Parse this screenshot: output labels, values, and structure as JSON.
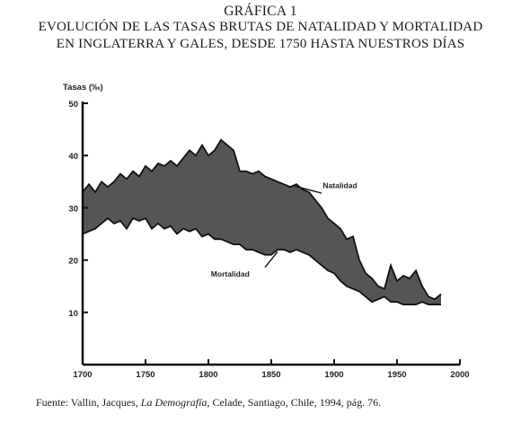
{
  "header": {
    "title": "GRÁFICA 1",
    "subtitle_line1": "EVOLUCIÓN DE LAS TASAS BRUTAS DE NATALIDAD Y MORTALIDAD",
    "subtitle_line2": "EN INGLATERRA Y GALES, DESDE 1750 HASTA NUESTROS DÍAS"
  },
  "source": {
    "prefix": "Fuente:  Vallin, Jacques, ",
    "italic": "La Demografía",
    "suffix": ", Celade, Santiago, Chile, 1994, pág. 76."
  },
  "chart_data": {
    "type": "area",
    "ylabel": "Tasas (‰)",
    "xlabel": "",
    "xlim": [
      1700,
      2000
    ],
    "ylim": [
      0,
      50
    ],
    "x_ticks": [
      1700,
      1750,
      1800,
      1850,
      1900,
      1950,
      2000
    ],
    "y_ticks": [
      10,
      20,
      30,
      40,
      50
    ],
    "fill_color": "#555555",
    "series": [
      {
        "name": "Natalidad",
        "x": [
          1700,
          1705,
          1710,
          1715,
          1720,
          1725,
          1730,
          1735,
          1740,
          1745,
          1750,
          1755,
          1760,
          1765,
          1770,
          1775,
          1780,
          1785,
          1790,
          1795,
          1800,
          1805,
          1810,
          1815,
          1820,
          1825,
          1830,
          1835,
          1840,
          1845,
          1850,
          1855,
          1860,
          1865,
          1870,
          1875,
          1880,
          1885,
          1890,
          1895,
          1900,
          1905,
          1910,
          1915,
          1920,
          1925,
          1930,
          1935,
          1940,
          1945,
          1950,
          1955,
          1960,
          1965,
          1970,
          1975,
          1980,
          1985
        ],
        "values": [
          33,
          34.5,
          33,
          35,
          34,
          35,
          36.5,
          35.5,
          37,
          36,
          38,
          37,
          38.5,
          38,
          39,
          38,
          39.5,
          41,
          40,
          42,
          40,
          41,
          43,
          42,
          41,
          37,
          37,
          36.5,
          37,
          36,
          35.5,
          35,
          34.5,
          34,
          34.5,
          33.5,
          33,
          31.5,
          30,
          28,
          27,
          26,
          24,
          24.5,
          20,
          17.5,
          16.5,
          15,
          14.5,
          19,
          16,
          17,
          16.5,
          18,
          15,
          13,
          12.5,
          13.5
        ]
      },
      {
        "name": "Mortalidad",
        "x": [
          1700,
          1705,
          1710,
          1715,
          1720,
          1725,
          1730,
          1735,
          1740,
          1745,
          1750,
          1755,
          1760,
          1765,
          1770,
          1775,
          1780,
          1785,
          1790,
          1795,
          1800,
          1805,
          1810,
          1815,
          1820,
          1825,
          1830,
          1835,
          1840,
          1845,
          1850,
          1855,
          1860,
          1865,
          1870,
          1875,
          1880,
          1885,
          1890,
          1895,
          1900,
          1905,
          1910,
          1915,
          1920,
          1925,
          1930,
          1935,
          1940,
          1945,
          1950,
          1955,
          1960,
          1965,
          1970,
          1975,
          1980,
          1985
        ],
        "values": [
          25,
          25.5,
          26,
          27,
          28,
          27,
          27.5,
          26,
          28,
          27.5,
          28,
          26,
          27,
          26,
          26.5,
          25,
          26,
          25.5,
          26,
          24.5,
          25,
          24,
          24,
          23.5,
          23,
          23,
          22,
          22,
          21.5,
          21,
          21,
          22,
          22,
          21.5,
          22,
          21.5,
          21,
          20,
          19,
          18,
          17.5,
          16,
          15,
          14.5,
          14,
          13,
          12,
          12.5,
          13,
          12,
          12,
          11.5,
          11.5,
          11.5,
          12,
          11.5,
          11.5,
          11.5
        ]
      }
    ]
  }
}
